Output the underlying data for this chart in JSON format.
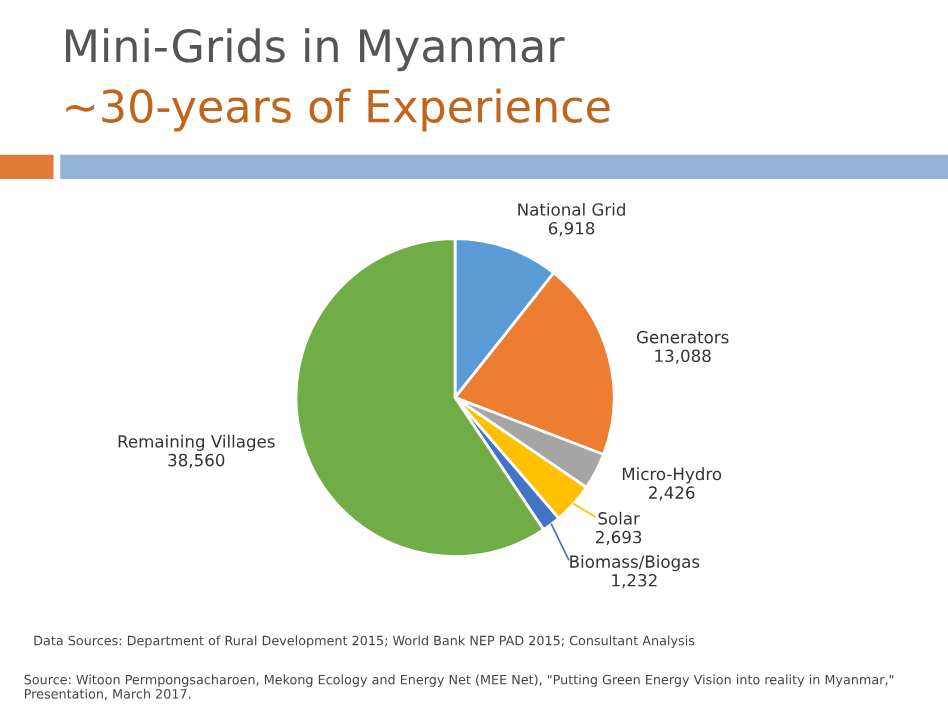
{
  "chart_data": {
    "type": "pie",
    "title": "Mini-Grids in Myanmar",
    "subtitle": "~30-years of Experience",
    "categories": [
      "National Grid",
      "Generators",
      "Micro-Hydro",
      "Solar",
      "Biomass/Biogas",
      "Remaining Villages"
    ],
    "values": [
      6918,
      13088,
      2426,
      2693,
      1232,
      38560
    ],
    "value_labels": [
      "6,918",
      "13,088",
      "2,426",
      "2,693",
      "1,232",
      "38,560"
    ],
    "colors": [
      "#5b9bd5",
      "#ed7d31",
      "#a5a5a5",
      "#ffc000",
      "#4472c4",
      "#70ad47"
    ],
    "legend": false,
    "annotations": [
      "Data Sources: Department of Rural Development 2015; World Bank NEP PAD 2015; Consultant Analysis",
      "Source: Witoon Permpongsacharoen, Mekong Ecology and Energy Net (MEE Net), \"Putting Green Energy Vision into reality in Myanmar,\" Presentation, March 2017."
    ]
  }
}
